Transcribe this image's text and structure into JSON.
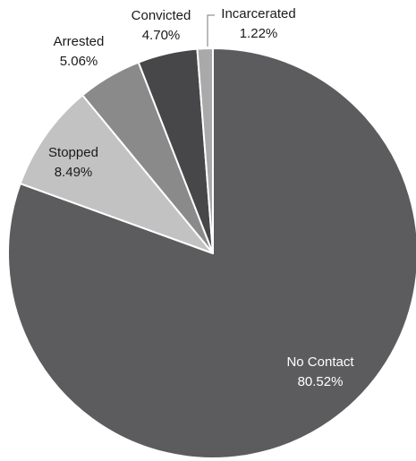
{
  "chart_data": {
    "type": "pie",
    "start_angle_deg": 0,
    "direction": "clockwise",
    "slices": [
      {
        "name": "No Contact",
        "value": 80.52,
        "label": "80.52%",
        "color": "#5c5c5e"
      },
      {
        "name": "Stopped",
        "value": 8.49,
        "label": "8.49%",
        "color": "#c2c2c2"
      },
      {
        "name": "Arrested",
        "value": 5.06,
        "label": "5.06%",
        "color": "#8a8a8a"
      },
      {
        "name": "Convicted",
        "value": 4.7,
        "label": "4.70%",
        "color": "#474749"
      },
      {
        "name": "Incarcerated",
        "value": 1.22,
        "label": "1.22%",
        "color": "#a9a9a9"
      }
    ]
  }
}
